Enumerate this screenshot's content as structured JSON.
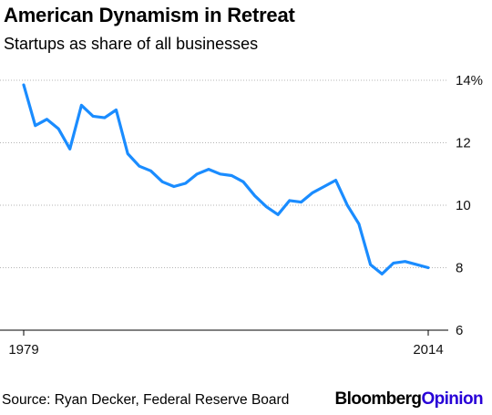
{
  "chart_data": {
    "type": "line",
    "title": "American Dynamism in Retreat",
    "subtitle": "Startups as share of all businesses",
    "x": [
      1979,
      1980,
      1981,
      1982,
      1983,
      1984,
      1985,
      1986,
      1987,
      1988,
      1989,
      1990,
      1991,
      1992,
      1993,
      1994,
      1995,
      1996,
      1997,
      1998,
      1999,
      2000,
      2001,
      2002,
      2003,
      2004,
      2005,
      2006,
      2007,
      2008,
      2009,
      2010,
      2011,
      2012,
      2013,
      2014
    ],
    "series": [
      {
        "values": [
          13.85,
          12.55,
          12.75,
          12.45,
          11.8,
          13.2,
          12.85,
          12.8,
          13.05,
          11.65,
          11.25,
          11.1,
          10.75,
          10.6,
          10.7,
          11.0,
          11.15,
          11.0,
          10.95,
          10.75,
          10.3,
          9.95,
          9.7,
          10.15,
          10.1,
          10.4,
          10.6,
          10.8,
          10.0,
          9.4,
          8.1,
          7.8,
          8.15,
          8.2,
          8.1,
          8.0
        ],
        "color": "#1a8cff"
      }
    ],
    "ylim": [
      6,
      14
    ],
    "yticks": [
      "6",
      "8",
      "10",
      "12",
      "14%"
    ],
    "xticks": [
      "1979",
      "2014"
    ],
    "y_axis_side": "right",
    "grid": true
  },
  "footer": {
    "source": "Source: Ryan Decker, Federal Reserve Board",
    "brand_main": "Bloomberg",
    "brand_accent": "Opinion"
  }
}
